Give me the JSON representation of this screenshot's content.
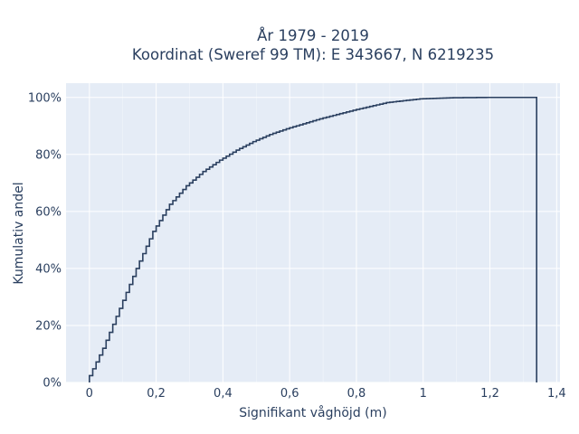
{
  "chart_data": {
    "type": "line",
    "step": "cumulative-histogram",
    "title_lines": [
      "År 1979 - 2019",
      "Koordinat (Sweref 99 TM): E 343667, N 6219235"
    ],
    "xlabel": "Signifikant våghöjd (m)",
    "ylabel": "Kumulativ andel",
    "xlim": [
      -0.07,
      1.41
    ],
    "ylim": [
      0,
      1.05
    ],
    "x_ticks": [
      0,
      0.2,
      0.4,
      0.6,
      0.8,
      1.0,
      1.2,
      1.4
    ],
    "x_tick_labels": [
      "0",
      "0,2",
      "0,4",
      "0,6",
      "0,8",
      "1",
      "1,2",
      "1,4"
    ],
    "y_ticks": [
      0,
      0.2,
      0.4,
      0.6,
      0.8,
      1.0
    ],
    "y_tick_labels": [
      "0%",
      "20%",
      "40%",
      "60%",
      "80%",
      "100%"
    ],
    "grid": true,
    "plot_background": "#e5ecf6",
    "line_color": "#2a3f5f",
    "x": [
      0,
      0.05,
      0.1,
      0.15,
      0.2,
      0.25,
      0.3,
      0.35,
      0.4,
      0.45,
      0.5,
      0.55,
      0.6,
      0.7,
      0.8,
      0.9,
      1.0,
      1.1,
      1.2,
      1.34
    ],
    "y": [
      0,
      0.12,
      0.26,
      0.4,
      0.53,
      0.625,
      0.69,
      0.74,
      0.78,
      0.815,
      0.845,
      0.87,
      0.89,
      0.925,
      0.955,
      0.982,
      0.995,
      0.999,
      1.0,
      1.0
    ]
  }
}
